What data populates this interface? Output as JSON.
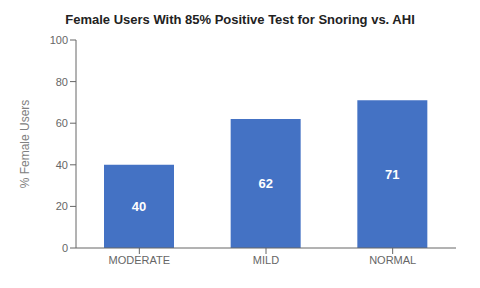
{
  "chart_data": {
    "type": "bar",
    "title": "Female Users With 85% Positive Test for Snoring vs. AHI",
    "categories": [
      "MODERATE",
      "MILD",
      "NORMAL"
    ],
    "values": [
      40,
      62,
      71
    ],
    "color": "#4472C4",
    "ylabel": "% Female Users",
    "ylim": [
      0,
      100
    ],
    "yticks": [
      0,
      20,
      40,
      60,
      80,
      100
    ],
    "data_labels": true,
    "grid": false
  }
}
